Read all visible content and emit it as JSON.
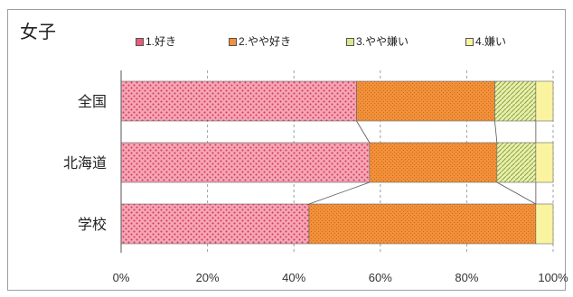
{
  "chart_data": {
    "type": "bar",
    "orientation": "horizontal",
    "stacked": "percent",
    "title": "女子",
    "categories": [
      "全国",
      "北海道",
      "学校"
    ],
    "series": [
      {
        "name": "1.好き",
        "color": "#e85c7a",
        "values": [
          54.5,
          57.5,
          43.5
        ]
      },
      {
        "name": "2.やや好き",
        "color": "#f2913a",
        "values": [
          32.0,
          29.5,
          52.5
        ]
      },
      {
        "name": "3.やや嫌い",
        "color": "#d9e88a",
        "values": [
          9.5,
          9.0,
          0.0
        ]
      },
      {
        "name": "4.嫌い",
        "color": "#faf3a0",
        "values": [
          4.0,
          4.0,
          4.0
        ]
      }
    ],
    "x_ticks": [
      "0%",
      "20%",
      "40%",
      "60%",
      "80%",
      "100%"
    ],
    "xlim": [
      0,
      100
    ],
    "grid": "vertical-dashed",
    "legend_position": "top"
  }
}
